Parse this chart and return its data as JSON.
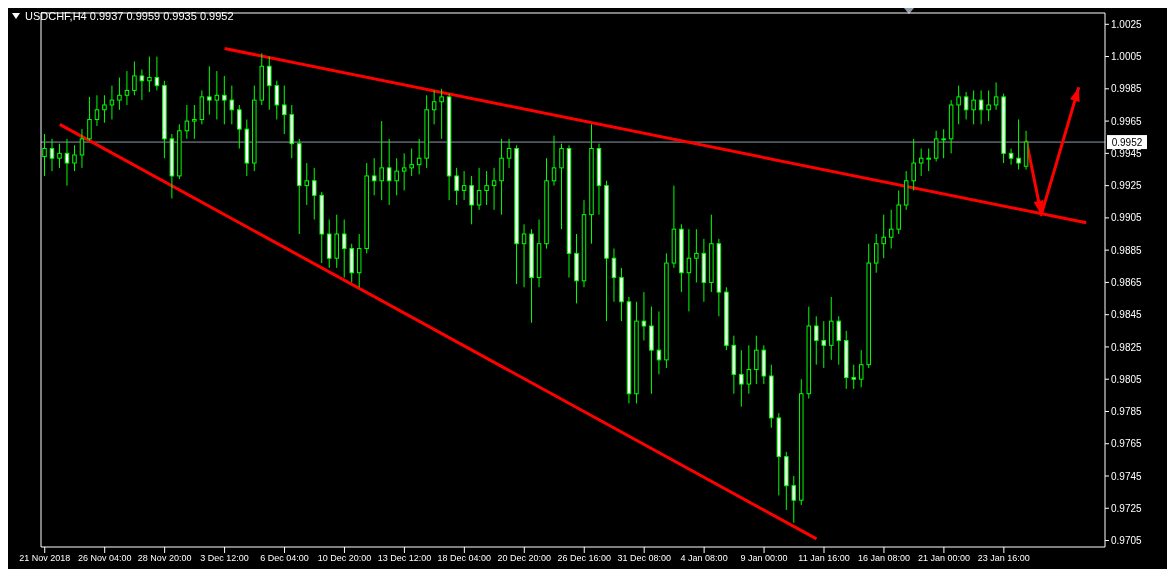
{
  "chart_data": {
    "type": "candlestick",
    "title": "USDCHF,H4 0.9937 0.9959 0.9935 0.9952",
    "color": "#00ff00",
    "categories": [
      "21 Nov 2018",
      null,
      null,
      null,
      null,
      null,
      null,
      null,
      "26 Nov 04:00",
      null,
      null,
      null,
      null,
      null,
      null,
      null,
      "28 Nov 20:00",
      null,
      null,
      null,
      null,
      null,
      null,
      null,
      "3 Dec 12:00",
      null,
      null,
      null,
      null,
      null,
      null,
      null,
      "6 Dec 04:00",
      null,
      null,
      null,
      null,
      null,
      null,
      null,
      "10 Dec 20:00",
      null,
      null,
      null,
      null,
      null,
      null,
      null,
      "13 Dec 12:00",
      null,
      null,
      null,
      null,
      null,
      null,
      null,
      "18 Dec 04:00",
      null,
      null,
      null,
      null,
      null,
      null,
      null,
      "20 Dec 20:00",
      null,
      null,
      null,
      null,
      null,
      null,
      null,
      "26 Dec 16:00",
      null,
      null,
      null,
      null,
      null,
      null,
      null,
      "31 Dec 08:00",
      null,
      null,
      null,
      null,
      null,
      null,
      null,
      "4 Jan 08:00",
      null,
      null,
      null,
      null,
      null,
      null,
      null,
      "9 Jan 00:00",
      null,
      null,
      null,
      null,
      null,
      null,
      null,
      "11 Jan 16:00",
      null,
      null,
      null,
      null,
      null,
      null,
      null,
      "16 Jan 08:00",
      null,
      null,
      null,
      null,
      null,
      null,
      null,
      "21 Jan 00:00",
      null,
      null,
      null,
      null,
      null,
      null,
      null,
      "23 Jan 16:00",
      null,
      null,
      null,
      null,
      null,
      null,
      null,
      null,
      null,
      null,
      null,
      null,
      null
    ],
    "ohlc": [
      [
        0.9943,
        0.9957,
        0.9931,
        0.9948
      ],
      [
        0.9948,
        0.9954,
        0.9934,
        0.9942
      ],
      [
        0.9942,
        0.9951,
        0.9936,
        0.9945
      ],
      [
        0.9945,
        0.9954,
        0.9925,
        0.9939
      ],
      [
        0.9939,
        0.995,
        0.9934,
        0.9944
      ],
      [
        0.9944,
        0.996,
        0.9936,
        0.9954
      ],
      [
        0.9954,
        0.998,
        0.9953,
        0.9966
      ],
      [
        0.9966,
        0.9981,
        0.9962,
        0.9972
      ],
      [
        0.9972,
        0.9981,
        0.9964,
        0.9975
      ],
      [
        0.9975,
        0.9987,
        0.9966,
        0.9978
      ],
      [
        0.9978,
        0.9992,
        0.9972,
        0.9981
      ],
      [
        0.9981,
        0.9996,
        0.9975,
        0.9984
      ],
      [
        0.9984,
        1.0002,
        0.9981,
        0.9993
      ],
      [
        0.9993,
        0.9997,
        0.9978,
        0.999
      ],
      [
        0.999,
        1.0005,
        0.9983,
        0.9992
      ],
      [
        0.9992,
        1.0005,
        0.9984,
        0.9987
      ],
      [
        0.9987,
        0.999,
        0.9942,
        0.9954
      ],
      [
        0.9954,
        0.9957,
        0.9917,
        0.9931
      ],
      [
        0.9931,
        0.9963,
        0.9929,
        0.9959
      ],
      [
        0.9959,
        0.9975,
        0.9954,
        0.9965
      ],
      [
        0.9965,
        0.9975,
        0.9954,
        0.9966
      ],
      [
        0.9966,
        0.9984,
        0.9963,
        0.998
      ],
      [
        0.998,
        0.9999,
        0.9969,
        0.9978
      ],
      [
        0.9978,
        0.9996,
        0.9966,
        0.9981
      ],
      [
        0.9981,
        0.9993,
        0.9963,
        0.9978
      ],
      [
        0.9978,
        0.9987,
        0.9963,
        0.9972
      ],
      [
        0.9972,
        0.9975,
        0.9948,
        0.996
      ],
      [
        0.996,
        0.9966,
        0.9931,
        0.9939
      ],
      [
        0.9939,
        0.9987,
        0.9934,
        0.9978
      ],
      [
        0.9978,
        1.0007,
        0.9975,
        0.9999
      ],
      [
        0.9999,
        1.0005,
        0.9972,
        0.9987
      ],
      [
        0.9987,
        0.999,
        0.9966,
        0.9975
      ],
      [
        0.9975,
        0.9987,
        0.9957,
        0.9969
      ],
      [
        0.9969,
        0.9975,
        0.9942,
        0.9951
      ],
      [
        0.9951,
        0.9954,
        0.9895,
        0.9925
      ],
      [
        0.9925,
        0.9939,
        0.9913,
        0.9928
      ],
      [
        0.9928,
        0.9936,
        0.9904,
        0.9919
      ],
      [
        0.9919,
        0.9921,
        0.9877,
        0.9895
      ],
      [
        0.9895,
        0.9904,
        0.9874,
        0.988
      ],
      [
        0.988,
        0.9907,
        0.9874,
        0.9895
      ],
      [
        0.9895,
        0.9904,
        0.9868,
        0.9886
      ],
      [
        0.9886,
        0.9889,
        0.9865,
        0.9871
      ],
      [
        0.9871,
        0.9895,
        0.9862,
        0.9886
      ],
      [
        0.9886,
        0.9939,
        0.9883,
        0.9931
      ],
      [
        0.9931,
        0.9942,
        0.9919,
        0.9928
      ],
      [
        0.9928,
        0.9965,
        0.9916,
        0.9936
      ],
      [
        0.9936,
        0.9954,
        0.9913,
        0.9928
      ],
      [
        0.9928,
        0.9942,
        0.9919,
        0.9934
      ],
      [
        0.9934,
        0.9945,
        0.9922,
        0.9936
      ],
      [
        0.9936,
        0.9948,
        0.9931,
        0.9938
      ],
      [
        0.9938,
        0.9954,
        0.9932,
        0.9942
      ],
      [
        0.9942,
        0.9981,
        0.9936,
        0.9972
      ],
      [
        0.9972,
        0.9984,
        0.9963,
        0.9977
      ],
      [
        0.9977,
        0.9985,
        0.9954,
        0.998
      ],
      [
        0.998,
        0.9982,
        0.9916,
        0.9931
      ],
      [
        0.9931,
        0.9936,
        0.9913,
        0.9922
      ],
      [
        0.9922,
        0.9934,
        0.9916,
        0.9925
      ],
      [
        0.9925,
        0.9931,
        0.9901,
        0.9913
      ],
      [
        0.9913,
        0.9936,
        0.991,
        0.9922
      ],
      [
        0.9922,
        0.9934,
        0.9913,
        0.9925
      ],
      [
        0.9925,
        0.9936,
        0.991,
        0.9928
      ],
      [
        0.9928,
        0.9954,
        0.9907,
        0.9942
      ],
      [
        0.9942,
        0.9954,
        0.9936,
        0.9948
      ],
      [
        0.9948,
        0.995,
        0.9864,
        0.9889
      ],
      [
        0.9889,
        0.9901,
        0.9862,
        0.9895
      ],
      [
        0.9895,
        0.9898,
        0.984,
        0.9868
      ],
      [
        0.9868,
        0.9904,
        0.9862,
        0.9889
      ],
      [
        0.9889,
        0.9942,
        0.9886,
        0.9928
      ],
      [
        0.9928,
        0.9956,
        0.9925,
        0.9936
      ],
      [
        0.9936,
        0.9951,
        0.9898,
        0.9948
      ],
      [
        0.9948,
        0.995,
        0.9868,
        0.9883
      ],
      [
        0.9883,
        0.9895,
        0.9852,
        0.9866
      ],
      [
        0.9866,
        0.9916,
        0.9862,
        0.9907
      ],
      [
        0.9907,
        0.9963,
        0.9889,
        0.9948
      ],
      [
        0.9948,
        0.9951,
        0.9907,
        0.9925
      ],
      [
        0.9925,
        0.9928,
        0.9841,
        0.988
      ],
      [
        0.988,
        0.9886,
        0.9853,
        0.9868
      ],
      [
        0.9868,
        0.9874,
        0.9841,
        0.9853
      ],
      [
        0.9853,
        0.9856,
        0.979,
        0.9796
      ],
      [
        0.9796,
        0.9853,
        0.979,
        0.9841
      ],
      [
        0.9841,
        0.9859,
        0.9829,
        0.9838
      ],
      [
        0.9838,
        0.985,
        0.9796,
        0.9823
      ],
      [
        0.9823,
        0.9847,
        0.9808,
        0.9817
      ],
      [
        0.9817,
        0.9883,
        0.9812,
        0.9877
      ],
      [
        0.9877,
        0.9925,
        0.9874,
        0.9898
      ],
      [
        0.9898,
        0.9901,
        0.9859,
        0.9871
      ],
      [
        0.9871,
        0.9898,
        0.9847,
        0.988
      ],
      [
        0.988,
        0.9898,
        0.9865,
        0.9883
      ],
      [
        0.9883,
        0.9892,
        0.9853,
        0.9865
      ],
      [
        0.9865,
        0.9907,
        0.9859,
        0.9889
      ],
      [
        0.9889,
        0.9892,
        0.9844,
        0.9859
      ],
      [
        0.9859,
        0.9862,
        0.9823,
        0.9826
      ],
      [
        0.9826,
        0.9832,
        0.9796,
        0.9808
      ],
      [
        0.9808,
        0.9823,
        0.9788,
        0.9802
      ],
      [
        0.9802,
        0.9826,
        0.9796,
        0.9811
      ],
      [
        0.9811,
        0.9832,
        0.9802,
        0.9823
      ],
      [
        0.9823,
        0.9826,
        0.9802,
        0.9807
      ],
      [
        0.9807,
        0.9814,
        0.9775,
        0.9781
      ],
      [
        0.9781,
        0.9784,
        0.9733,
        0.9757
      ],
      [
        0.9757,
        0.976,
        0.9724,
        0.9739
      ],
      [
        0.9739,
        0.9745,
        0.9716,
        0.973
      ],
      [
        0.973,
        0.9805,
        0.9727,
        0.9796
      ],
      [
        0.9796,
        0.985,
        0.9793,
        0.9838
      ],
      [
        0.9838,
        0.9844,
        0.9814,
        0.9829
      ],
      [
        0.9829,
        0.9841,
        0.9812,
        0.9826
      ],
      [
        0.9826,
        0.9856,
        0.9817,
        0.9841
      ],
      [
        0.9841,
        0.9844,
        0.9814,
        0.9829
      ],
      [
        0.9829,
        0.9835,
        0.9799,
        0.9806
      ],
      [
        0.9806,
        0.9814,
        0.9799,
        0.9805
      ],
      [
        0.9805,
        0.9823,
        0.98,
        0.9814
      ],
      [
        0.9814,
        0.9889,
        0.9812,
        0.9877
      ],
      [
        0.9877,
        0.9895,
        0.9871,
        0.9889
      ],
      [
        0.9889,
        0.9907,
        0.988,
        0.9893
      ],
      [
        0.9893,
        0.991,
        0.9886,
        0.9898
      ],
      [
        0.9898,
        0.9922,
        0.9895,
        0.9913
      ],
      [
        0.9913,
        0.9934,
        0.991,
        0.9928
      ],
      [
        0.9928,
        0.9954,
        0.9922,
        0.9939
      ],
      [
        0.9939,
        0.9948,
        0.9931,
        0.9942
      ],
      [
        0.9942,
        0.9948,
        0.9934,
        0.9942
      ],
      [
        0.9942,
        0.9959,
        0.994,
        0.9954
      ],
      [
        0.9954,
        0.996,
        0.9942,
        0.9954
      ],
      [
        0.9954,
        0.9978,
        0.9945,
        0.9975
      ],
      [
        0.9975,
        0.9987,
        0.9963,
        0.998
      ],
      [
        0.998,
        0.9983,
        0.9966,
        0.9972
      ],
      [
        0.9972,
        0.9984,
        0.9963,
        0.9978
      ],
      [
        0.9978,
        0.9984,
        0.9963,
        0.9972
      ],
      [
        0.9972,
        0.9984,
        0.9965,
        0.9975
      ],
      [
        0.9975,
        0.9989,
        0.9972,
        0.998
      ],
      [
        0.998,
        0.9982,
        0.9939,
        0.9945
      ],
      [
        0.9945,
        0.9948,
        0.9938,
        0.9942
      ],
      [
        0.9942,
        0.9966,
        0.9935,
        0.9939
      ],
      [
        0.9937,
        0.9959,
        0.9935,
        0.9952
      ],
      null,
      null,
      null,
      null,
      null,
      null,
      null,
      null,
      null,
      null
    ],
    "series": [
      {
        "type": "line",
        "color": "#ff0000",
        "values": [
          null,
          null,
          null,
          null,
          null,
          null,
          null,
          null,
          null,
          null,
          null,
          null,
          null,
          null,
          null,
          null,
          null,
          null,
          null,
          null,
          null,
          null,
          null,
          null,
          1.001,
          null,
          null,
          null,
          null,
          null,
          null,
          null,
          null,
          null,
          null,
          null,
          null,
          null,
          null,
          null,
          null,
          null,
          null,
          null,
          null,
          null,
          null,
          null,
          null,
          null,
          null,
          null,
          null,
          null,
          null,
          null,
          null,
          null,
          null,
          null,
          null,
          null,
          null,
          null,
          null,
          null,
          null,
          null,
          null,
          null,
          null,
          null,
          null,
          null,
          null,
          null,
          null,
          null,
          null,
          null,
          null,
          null,
          null,
          null,
          null,
          null,
          null,
          null,
          null,
          null,
          null,
          null,
          null,
          null,
          null,
          null,
          null,
          null,
          null,
          null,
          null,
          null,
          null,
          null,
          null,
          null,
          null,
          null,
          null,
          null,
          null,
          null,
          null,
          null,
          null,
          null,
          null,
          null,
          null,
          null,
          null,
          null,
          null,
          null,
          null,
          null,
          null,
          null,
          null,
          null,
          null,
          null,
          null,
          null,
          null,
          null,
          null,
          null,
          null,
          0.9902,
          null,
          null
        ]
      },
      {
        "type": "line",
        "color": "#ff0000",
        "values": [
          null,
          null,
          0.9963,
          null,
          null,
          null,
          null,
          null,
          null,
          null,
          null,
          null,
          null,
          null,
          null,
          null,
          null,
          null,
          null,
          null,
          null,
          null,
          null,
          null,
          null,
          null,
          null,
          null,
          null,
          null,
          null,
          null,
          null,
          null,
          null,
          null,
          null,
          null,
          null,
          null,
          null,
          null,
          null,
          null,
          null,
          null,
          null,
          null,
          null,
          null,
          null,
          null,
          null,
          null,
          null,
          null,
          null,
          null,
          null,
          null,
          null,
          null,
          null,
          null,
          null,
          null,
          null,
          null,
          null,
          null,
          null,
          null,
          null,
          null,
          null,
          null,
          null,
          null,
          null,
          null,
          null,
          null,
          null,
          null,
          null,
          null,
          null,
          null,
          null,
          null,
          null,
          null,
          null,
          null,
          null,
          null,
          null,
          null,
          null,
          null,
          null,
          null,
          null,
          0.9706,
          null,
          null,
          null,
          null,
          null,
          null,
          null,
          null,
          null,
          null,
          null,
          null,
          null,
          null,
          null,
          null,
          null,
          null,
          null,
          null,
          null,
          null,
          null,
          null,
          null,
          null,
          null,
          null,
          null,
          null,
          null,
          null,
          null,
          null,
          null,
          null,
          null,
          null
        ]
      },
      {
        "type": "line",
        "color": "#ff0000",
        "values": [
          null,
          null,
          null,
          null,
          null,
          null,
          null,
          null,
          null,
          null,
          null,
          null,
          null,
          null,
          null,
          null,
          null,
          null,
          null,
          null,
          null,
          null,
          null,
          null,
          null,
          null,
          null,
          null,
          null,
          null,
          null,
          null,
          null,
          null,
          null,
          null,
          null,
          null,
          null,
          null,
          null,
          null,
          null,
          null,
          null,
          null,
          null,
          null,
          null,
          null,
          null,
          null,
          null,
          null,
          null,
          null,
          null,
          null,
          null,
          null,
          null,
          null,
          null,
          null,
          null,
          null,
          null,
          null,
          null,
          null,
          null,
          null,
          null,
          null,
          null,
          null,
          null,
          null,
          null,
          null,
          null,
          null,
          null,
          null,
          null,
          null,
          null,
          null,
          null,
          null,
          null,
          null,
          null,
          null,
          null,
          null,
          null,
          null,
          null,
          null,
          null,
          null,
          null,
          null,
          null,
          null,
          null,
          null,
          null,
          null,
          null,
          null,
          null,
          null,
          null,
          null,
          null,
          null,
          null,
          null,
          null,
          null,
          null,
          null,
          null,
          null,
          null,
          null,
          null,
          null,
          null,
          0.9953,
          null,
          0.9907,
          null,
          null,
          null,
          null,
          0.9986,
          null,
          null,
          null
        ]
      }
    ],
    "ylim": [
      0.9701,
      1.0032
    ],
    "yticks": [
      0.9705,
      0.9725,
      0.9745,
      0.9765,
      0.9785,
      0.9805,
      0.9825,
      0.9845,
      0.9865,
      0.9885,
      0.9905,
      0.9925,
      0.9945,
      0.9965,
      0.9985,
      1.0005,
      1.0025
    ],
    "ref_lines": [
      {
        "axis": "y",
        "value": 0.9952,
        "label": "0.9952",
        "color": "#8f9ba8"
      }
    ]
  }
}
